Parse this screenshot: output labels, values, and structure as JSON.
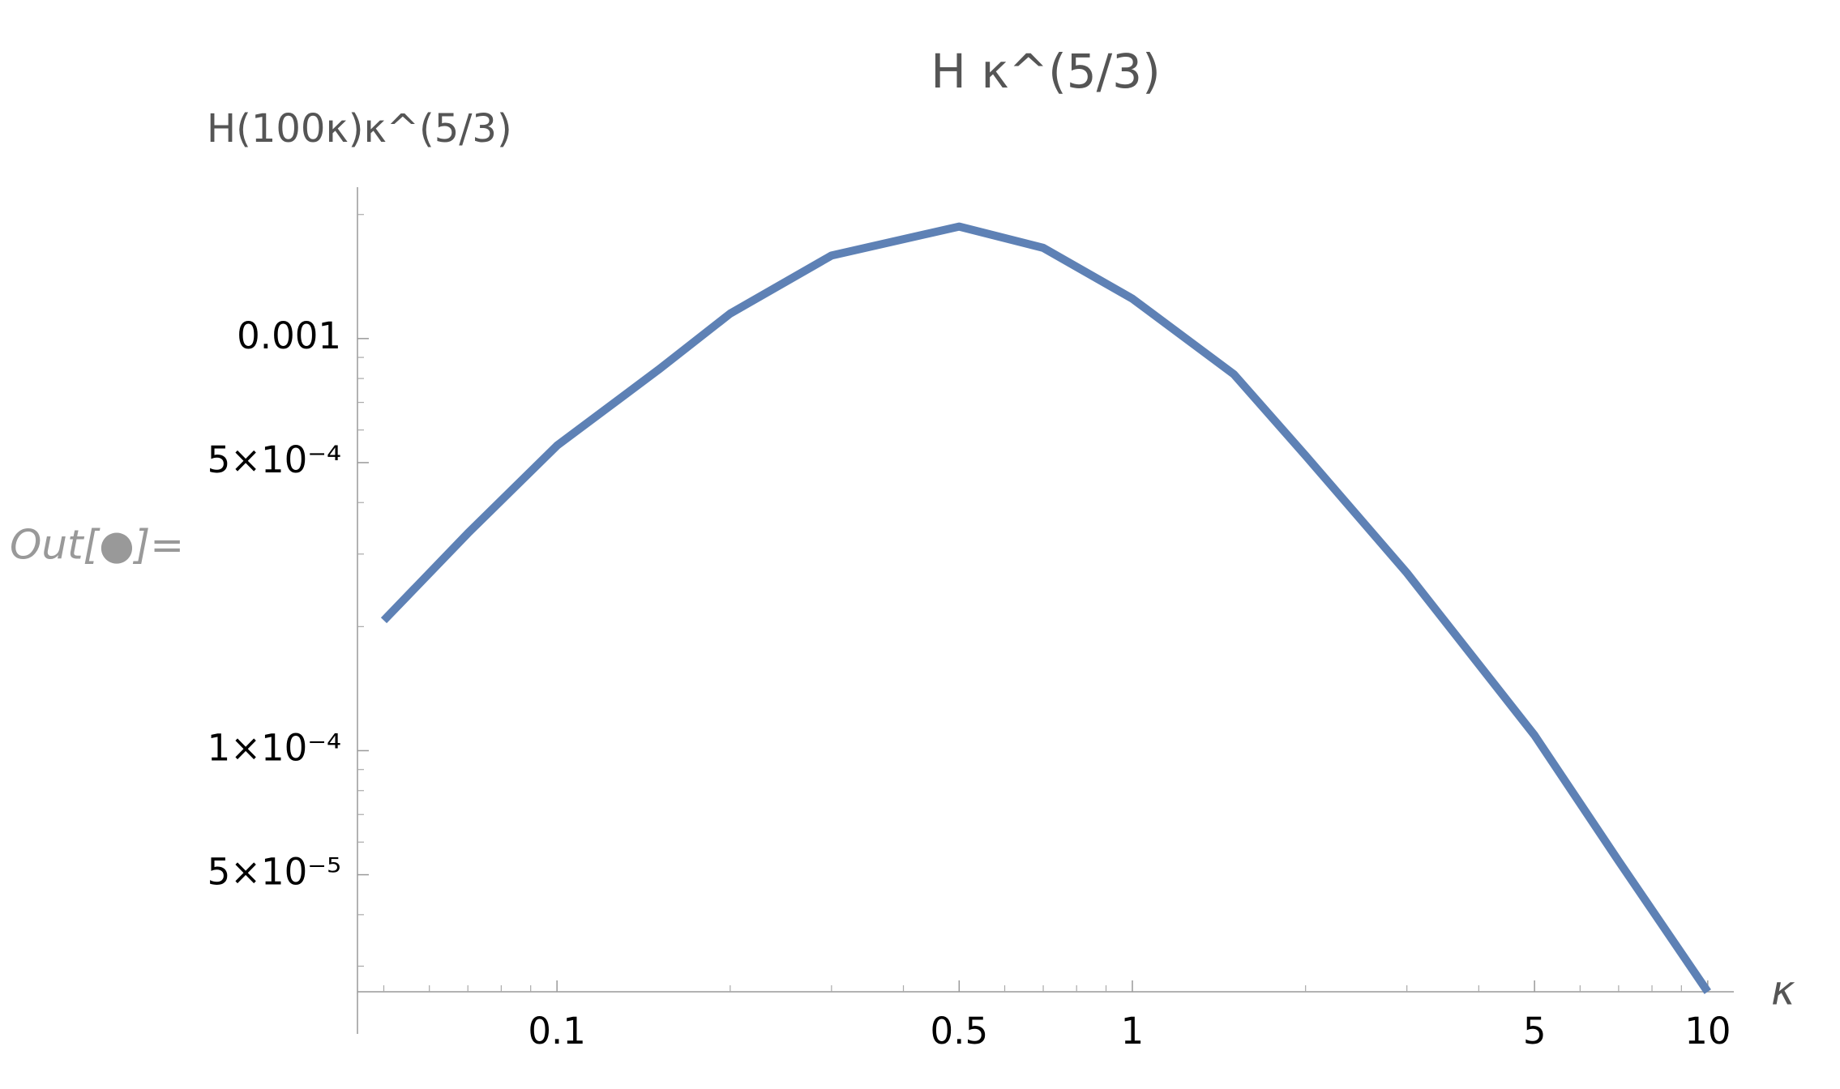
{
  "chart_data": {
    "type": "line",
    "title": "H κ^(5/3)",
    "y_label": "H(100κ)κ^(5/3)",
    "x_label": "κ",
    "cell_label": "Out[●]=",
    "x": [
      0.05,
      0.07,
      0.1,
      0.15,
      0.2,
      0.3,
      0.5,
      0.7,
      1,
      1.5,
      2,
      3,
      5,
      7,
      10
    ],
    "series": [
      {
        "color": "#5e81b5",
        "values": [
          0.000207,
          0.000337,
          0.00055,
          0.00084,
          0.00115,
          0.00159,
          0.00187,
          0.00166,
          0.00125,
          0.00082,
          0.00052,
          0.00027,
          0.000109,
          5.4e-05,
          2.6e-05
        ]
      }
    ],
    "xscale": "log",
    "yscale": "log",
    "xlim": [
      0.045,
      11.1
    ],
    "ylim": [
      2.6e-05,
      0.00233
    ],
    "xticks": [
      0.1,
      0.5,
      1,
      5,
      10
    ],
    "yticks": [
      0.001,
      {
        "value": 0.0005,
        "label": "5×10⁻⁴"
      },
      {
        "value": 0.0001,
        "label": "1×10⁻⁴"
      },
      {
        "value": 5e-05,
        "label": "5×10⁻⁵"
      }
    ],
    "xminorticks": [
      0.05,
      0.06,
      0.07,
      0.08,
      0.09,
      0.2,
      0.3,
      0.4,
      0.6,
      0.7,
      0.8,
      0.9,
      2,
      3,
      4,
      6,
      7,
      8,
      9
    ],
    "yminorticks": [
      3e-05,
      4e-05,
      6e-05,
      7e-05,
      8e-05,
      9e-05,
      0.0002,
      0.0003,
      0.0004,
      0.0006,
      0.0007,
      0.0008,
      0.0009,
      0.002
    ]
  }
}
